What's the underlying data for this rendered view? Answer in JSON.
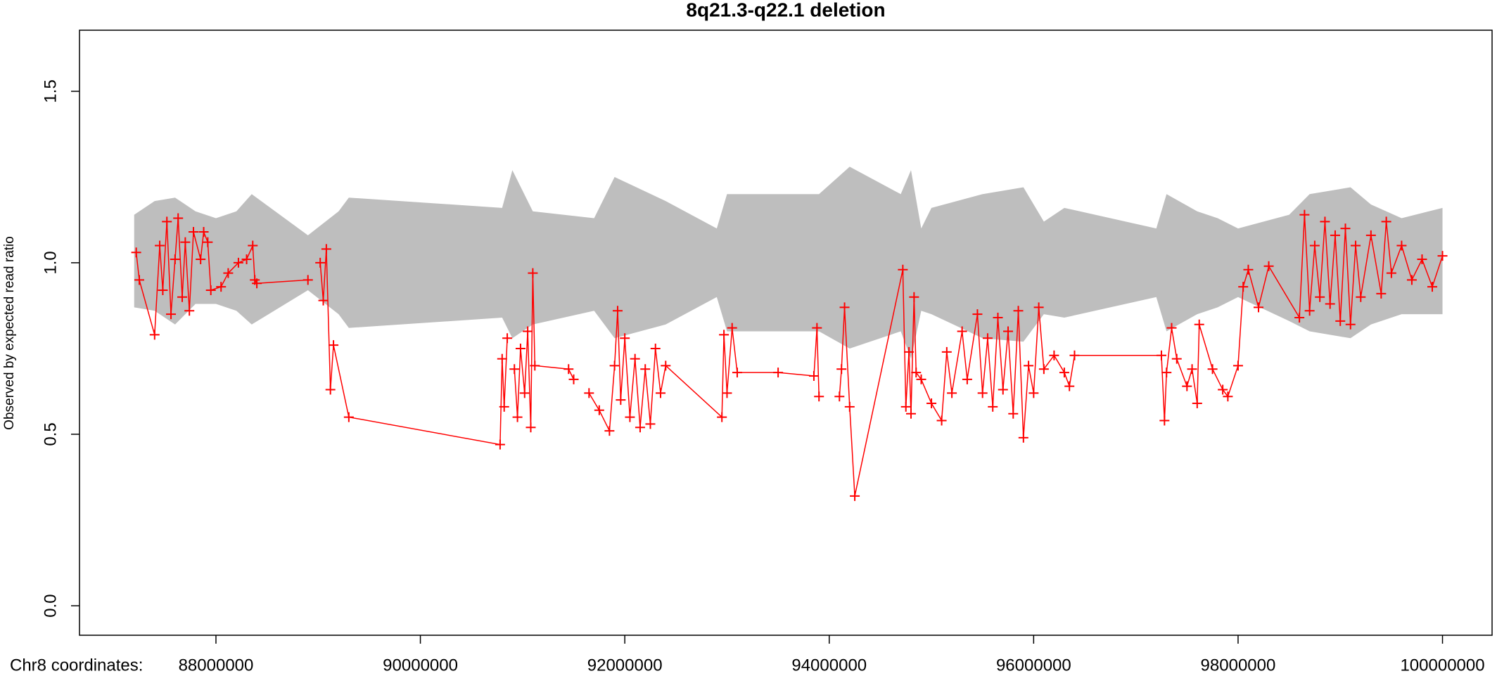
{
  "chart_data": {
    "type": "line",
    "title": "8q21.3-q22.1 deletion",
    "x_label": "Chr8 coordinates:",
    "y_label": "Observed by expected read ratio",
    "xlim": [
      86665000,
      100485000
    ],
    "ylim": [
      -0.086,
      1.678
    ],
    "xticks": [
      88000000,
      90000000,
      92000000,
      94000000,
      96000000,
      98000000,
      100000000
    ],
    "yticks": [
      {
        "value": 0,
        "label": "0.0"
      },
      0.5,
      {
        "value": 1,
        "label": "1.0"
      },
      1.5
    ],
    "band": {
      "color": "#bebebe",
      "x": [
        87200000,
        87400000,
        87600000,
        87800000,
        88000000,
        88200000,
        88350000,
        88900000,
        89200000,
        89300000,
        90800000,
        90900000,
        91100000,
        91700000,
        91900000,
        92400000,
        92900000,
        93000000,
        93100000,
        93900000,
        94200000,
        94700000,
        94800000,
        94900000,
        95000000,
        95500000,
        95900000,
        96100000,
        96300000,
        97200000,
        97300000,
        97600000,
        97800000,
        98000000,
        98500000,
        98700000,
        99100000,
        99300000,
        99600000,
        100000000
      ],
      "upper": [
        1.14,
        1.18,
        1.19,
        1.15,
        1.13,
        1.15,
        1.2,
        1.08,
        1.15,
        1.19,
        1.16,
        1.27,
        1.15,
        1.13,
        1.25,
        1.18,
        1.1,
        1.2,
        1.2,
        1.2,
        1.28,
        1.2,
        1.27,
        1.1,
        1.16,
        1.2,
        1.22,
        1.12,
        1.16,
        1.1,
        1.2,
        1.15,
        1.13,
        1.1,
        1.14,
        1.2,
        1.22,
        1.17,
        1.13,
        1.16
      ],
      "lower": [
        0.87,
        0.86,
        0.82,
        0.88,
        0.88,
        0.86,
        0.82,
        0.92,
        0.85,
        0.81,
        0.84,
        0.78,
        0.82,
        0.86,
        0.78,
        0.82,
        0.9,
        0.8,
        0.8,
        0.8,
        0.75,
        0.8,
        0.72,
        0.86,
        0.85,
        0.78,
        0.77,
        0.85,
        0.84,
        0.9,
        0.8,
        0.85,
        0.87,
        0.9,
        0.83,
        0.8,
        0.78,
        0.82,
        0.85,
        0.85
      ]
    },
    "series": [
      {
        "color": "#ff0000",
        "x": [
          87220000,
          87250000,
          87400000,
          87450000,
          87480000,
          87520000,
          87560000,
          87600000,
          87630000,
          87670000,
          87700000,
          87740000,
          87780000,
          87850000,
          87880000,
          87920000,
          87950000,
          88050000,
          88120000,
          88220000,
          88300000,
          88360000,
          88380000,
          88400000,
          88900000,
          null,
          89020000,
          89050000,
          89080000,
          89120000,
          89150000,
          89300000,
          90780000,
          90800000,
          90820000,
          90850000,
          null,
          90920000,
          90950000,
          90980000,
          91020000,
          91050000,
          91080000,
          91100000,
          91120000,
          91450000,
          91500000,
          null,
          91650000,
          91750000,
          91850000,
          91900000,
          91930000,
          91960000,
          92000000,
          92050000,
          92100000,
          92150000,
          92200000,
          92250000,
          92300000,
          92350000,
          92400000,
          92950000,
          92970000,
          93000000,
          93050000,
          93100000,
          93500000,
          93850000,
          93880000,
          93900000,
          null,
          94100000,
          94120000,
          94150000,
          94200000,
          94250000,
          94720000,
          94750000,
          94780000,
          94800000,
          94830000,
          94850000,
          94900000,
          95000000,
          95100000,
          95150000,
          95200000,
          95300000,
          95350000,
          95450000,
          95500000,
          95550000,
          95600000,
          95650000,
          95700000,
          95750000,
          95800000,
          95850000,
          95900000,
          95950000,
          96000000,
          96050000,
          96100000,
          96200000,
          96300000,
          96350000,
          96400000,
          97250000,
          97280000,
          97300000,
          97350000,
          97400000,
          97500000,
          97550000,
          97600000,
          97620000,
          97750000,
          97850000,
          97900000,
          98000000,
          98050000,
          98100000,
          98200000,
          98300000,
          98600000,
          98650000,
          98700000,
          98750000,
          98800000,
          98850000,
          98900000,
          98950000,
          99000000,
          99050000,
          99100000,
          99150000,
          99200000,
          99300000,
          99400000,
          99450000,
          99500000,
          99600000,
          99700000,
          99800000,
          99900000,
          100000000
        ],
        "values": [
          1.03,
          0.95,
          0.79,
          1.05,
          0.92,
          1.12,
          0.85,
          1.01,
          1.13,
          0.9,
          1.06,
          0.86,
          1.09,
          1.01,
          1.09,
          1.06,
          0.92,
          0.93,
          0.97,
          1.0,
          1.01,
          1.05,
          0.95,
          0.94,
          0.95,
          null,
          1.0,
          0.89,
          1.04,
          0.63,
          0.76,
          0.55,
          0.47,
          0.72,
          0.58,
          0.78,
          null,
          0.69,
          0.55,
          0.75,
          0.62,
          0.8,
          0.52,
          0.97,
          0.7,
          0.69,
          0.66,
          null,
          0.62,
          0.57,
          0.51,
          0.7,
          0.86,
          0.6,
          0.78,
          0.55,
          0.72,
          0.52,
          0.69,
          0.53,
          0.75,
          0.62,
          0.7,
          0.55,
          0.79,
          0.62,
          0.81,
          0.68,
          0.68,
          0.67,
          0.81,
          0.61,
          null,
          0.61,
          0.69,
          0.87,
          0.58,
          0.32,
          0.98,
          0.58,
          0.74,
          0.56,
          0.9,
          0.68,
          0.66,
          0.59,
          0.54,
          0.74,
          0.62,
          0.8,
          0.66,
          0.85,
          0.62,
          0.78,
          0.58,
          0.84,
          0.63,
          0.8,
          0.56,
          0.86,
          0.49,
          0.7,
          0.62,
          0.87,
          0.69,
          0.73,
          0.68,
          0.64,
          0.73,
          0.73,
          0.54,
          0.68,
          0.81,
          0.72,
          0.64,
          0.69,
          0.59,
          0.82,
          0.69,
          0.63,
          0.61,
          0.7,
          0.93,
          0.98,
          0.87,
          0.99,
          0.84,
          1.14,
          0.86,
          1.05,
          0.9,
          1.12,
          0.88,
          1.08,
          0.83,
          1.1,
          0.82,
          1.05,
          0.9,
          1.08,
          0.91,
          1.12,
          0.97,
          1.05,
          0.95,
          1.01,
          0.93,
          1.02
        ]
      }
    ]
  }
}
